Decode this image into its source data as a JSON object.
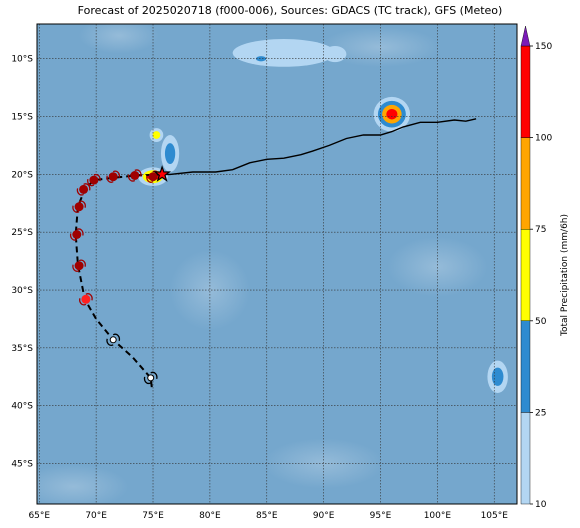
{
  "title": "Forecast of 2025020718 (f000-006), Sources: GDACS (TC track), GFS (Meteo)",
  "map": {
    "lon_range": [
      64.8,
      107.0
    ],
    "lat_range": [
      -48.5,
      -7.0
    ],
    "lon_ticks": [
      "65°E",
      "70°E",
      "75°E",
      "80°E",
      "85°E",
      "90°E",
      "95°E",
      "100°E",
      "105°E"
    ],
    "lat_ticks": [
      "10°S",
      "15°S",
      "20°S",
      "25°S",
      "30°S",
      "35°S",
      "40°S",
      "45°S"
    ],
    "grid": true,
    "ocean_color": "#75a7cd"
  },
  "colorbar": {
    "title": "Total Precipitation (mm/6h)",
    "ticks": [
      "10",
      "25",
      "50",
      "75",
      "100",
      "150"
    ],
    "colors": [
      "#b3d6f2",
      "#2e8bd0",
      "#ffff00",
      "#ffa500",
      "#ff0000",
      "#7a1ab8"
    ]
  },
  "track": {
    "past_line": [
      [
        103.4,
        -15.2
      ],
      [
        102.5,
        -15.4
      ],
      [
        101.5,
        -15.3
      ],
      [
        100,
        -15.5
      ],
      [
        98.5,
        -15.5
      ],
      [
        97,
        -15.9
      ],
      [
        96,
        -16.3
      ],
      [
        95,
        -16.6
      ],
      [
        93.5,
        -16.6
      ],
      [
        92,
        -16.9
      ],
      [
        90.5,
        -17.5
      ],
      [
        89,
        -18
      ],
      [
        88,
        -18.3
      ],
      [
        86.5,
        -18.6
      ],
      [
        85,
        -18.7
      ],
      [
        83.5,
        -19
      ],
      [
        82,
        -19.6
      ],
      [
        80.5,
        -19.8
      ],
      [
        78.5,
        -19.8
      ],
      [
        76.5,
        -20
      ],
      [
        75.8,
        -20
      ]
    ],
    "forecast_line": [
      [
        75.8,
        -20
      ],
      [
        73.5,
        -20.1
      ],
      [
        71.5,
        -20.3
      ],
      [
        69.8,
        -20.5
      ],
      [
        69,
        -21.3
      ],
      [
        68.4,
        -22.8
      ],
      [
        68.2,
        -25.2
      ],
      [
        68.4,
        -27.8
      ],
      [
        69,
        -30.8
      ],
      [
        70,
        -32.5
      ],
      [
        71.5,
        -34.3
      ],
      [
        73.2,
        -35.8
      ],
      [
        74.8,
        -37.6
      ],
      [
        74.9,
        -38.5
      ]
    ],
    "current_position": [
      75.8,
      -20.0
    ],
    "points": [
      {
        "lon": 75.0,
        "lat": -20.2,
        "cat": "strong"
      },
      {
        "lon": 73.4,
        "lat": -20.1,
        "cat": "strong"
      },
      {
        "lon": 71.5,
        "lat": -20.2,
        "cat": "strong"
      },
      {
        "lon": 69.8,
        "lat": -20.5,
        "cat": "strong"
      },
      {
        "lon": 68.9,
        "lat": -21.3,
        "cat": "strong"
      },
      {
        "lon": 68.5,
        "lat": -22.8,
        "cat": "strong"
      },
      {
        "lon": 68.3,
        "lat": -25.2,
        "cat": "strong"
      },
      {
        "lon": 68.5,
        "lat": -27.9,
        "cat": "strong"
      },
      {
        "lon": 69.1,
        "lat": -30.8,
        "cat": "medium"
      },
      {
        "lon": 71.5,
        "lat": -34.3,
        "cat": "weak"
      },
      {
        "lon": 74.8,
        "lat": -37.6,
        "cat": "weak"
      }
    ]
  },
  "precip_areas": [
    {
      "lon": 96.0,
      "lat": -14.8,
      "rx": 1.6,
      "ry": 1.5,
      "levels": [
        10,
        25,
        75,
        100
      ]
    },
    {
      "lon": 75.0,
      "lat": -20.2,
      "rx": 1.3,
      "ry": 0.8,
      "levels": [
        10,
        50,
        100
      ]
    },
    {
      "lon": 76.5,
      "lat": -18.2,
      "rx": 0.8,
      "ry": 1.6,
      "levels": [
        10,
        25
      ]
    },
    {
      "lon": 75.3,
      "lat": -16.6,
      "rx": 0.6,
      "ry": 0.6,
      "levels": [
        10,
        50
      ]
    },
    {
      "lon": 105.3,
      "lat": -37.5,
      "rx": 0.9,
      "ry": 1.4,
      "levels": [
        10,
        25
      ]
    },
    {
      "lon": 86.5,
      "lat": -9.5,
      "rx": 4.5,
      "ry": 1.2,
      "levels": [
        10
      ]
    },
    {
      "lon": 91.0,
      "lat": -9.6,
      "rx": 1.0,
      "ry": 0.7,
      "levels": [
        10
      ]
    },
    {
      "lon": 84.5,
      "lat": -10.0,
      "rx": 0.8,
      "ry": 0.4,
      "levels": [
        10,
        25
      ]
    }
  ]
}
